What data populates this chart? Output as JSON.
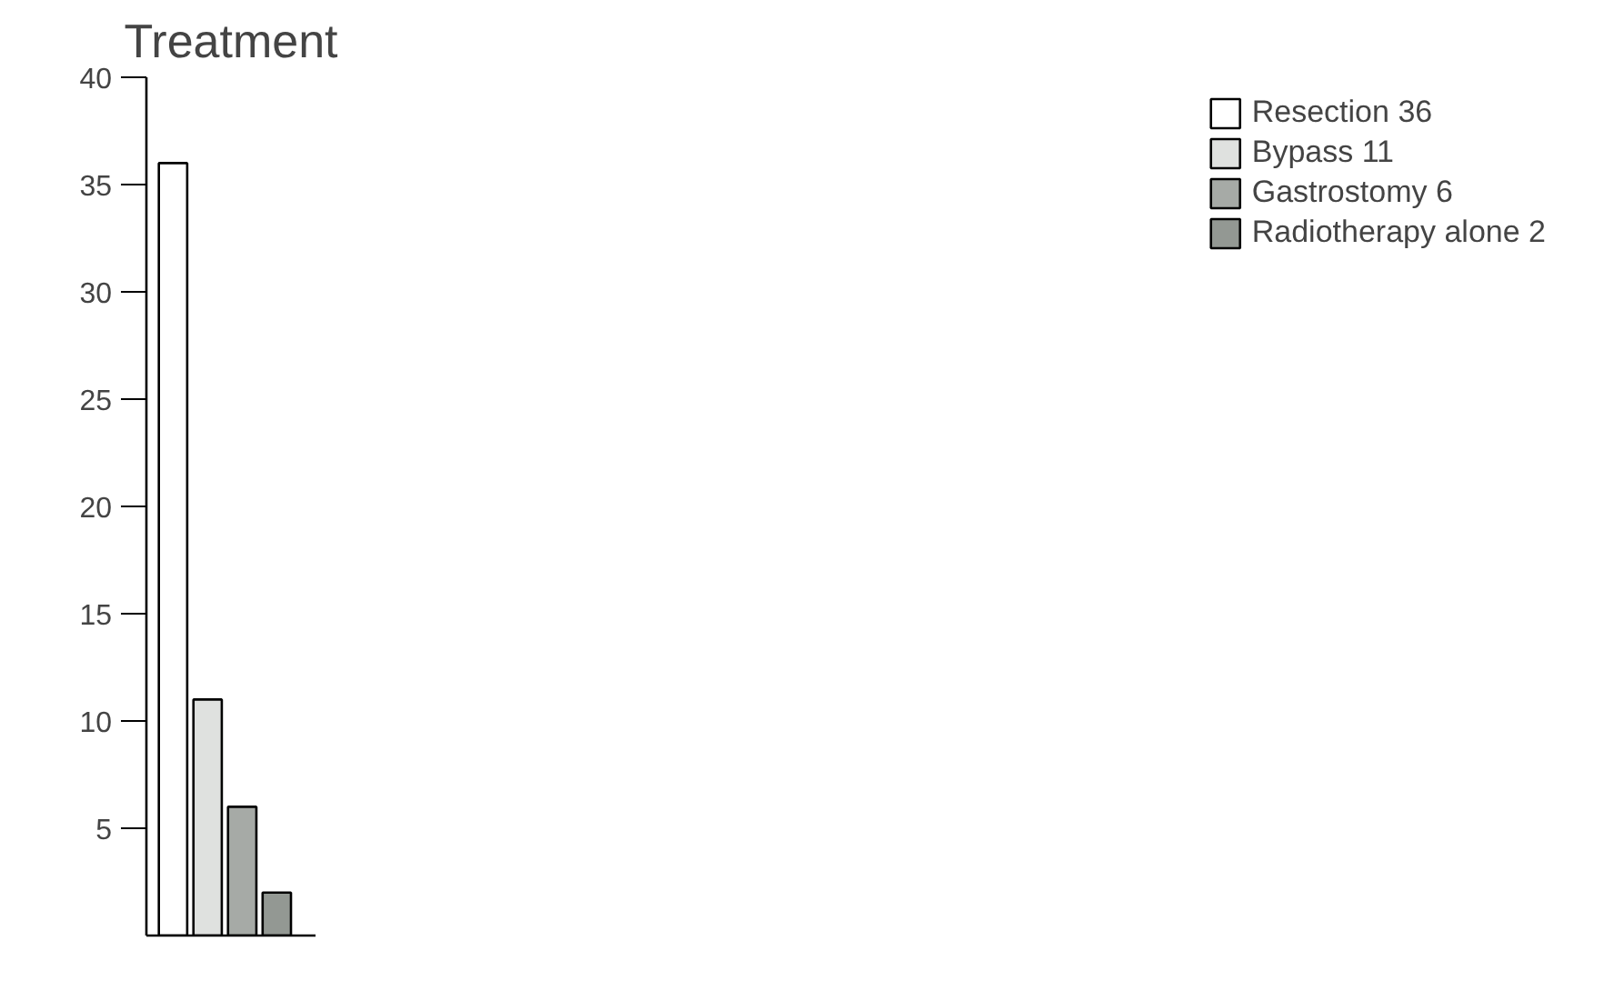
{
  "chart_data": {
    "type": "bar",
    "title": "Treatment",
    "categories": [
      null,
      null,
      null,
      null
    ],
    "series": [
      {
        "name": "Resection 36",
        "color": "#ffffff",
        "values": [
          36,
          null,
          null,
          null
        ]
      },
      {
        "name": "Bypass 11",
        "color": "#dfe1df",
        "values": [
          null,
          11,
          null,
          null
        ]
      },
      {
        "name": "Gastrostomy 6",
        "color": "#a6aaa6",
        "values": [
          null,
          null,
          6,
          null
        ]
      },
      {
        "name": "Radiotherapy alone 2",
        "color": "#939893",
        "values": [
          null,
          null,
          null,
          2
        ]
      }
    ],
    "ylim": [
      0,
      40
    ],
    "yticks": [
      5,
      10,
      15,
      20,
      25,
      30,
      35,
      40
    ],
    "grid": false,
    "legend": "right",
    "tick_labels": "y"
  }
}
